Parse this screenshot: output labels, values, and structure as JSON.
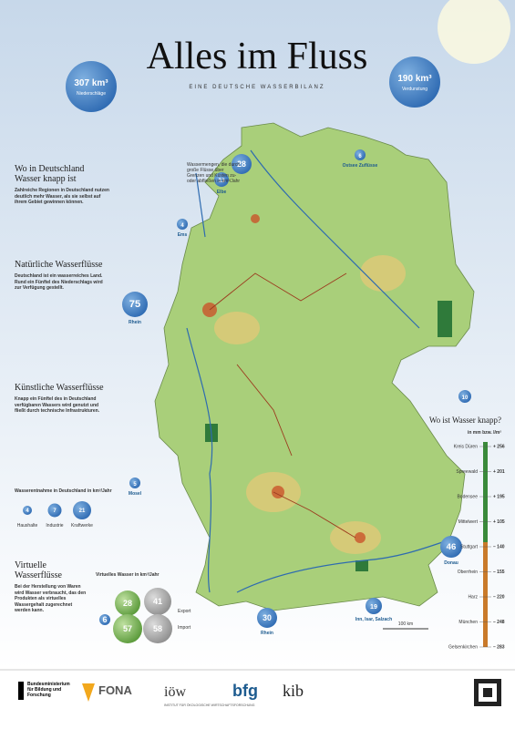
{
  "header": {
    "title": "Alles im Fluss",
    "subtitle": "EINE DEUTSCHE WASSERBILANZ"
  },
  "precipitation": {
    "value": "307 km³",
    "label": "Niederschläge"
  },
  "evaporation": {
    "value": "190 km³",
    "label": "Verdunstung"
  },
  "flows_intro": "Wassermengen, die durch große Flüsse über Grenzen und Küsten zu- oder abfließen in km³/Jahr",
  "flows": [
    {
      "value": "28",
      "label": ""
    },
    {
      "value": "13",
      "label": "Elbe"
    },
    {
      "value": "6",
      "label": "Ostsee Zuflüsse"
    },
    {
      "value": "4",
      "label": "Ems"
    },
    {
      "value": "75",
      "label": "Rhein"
    },
    {
      "value": "10",
      "label": ""
    },
    {
      "value": "5",
      "label": "Mosel"
    },
    {
      "value": "46",
      "label": "Donau"
    },
    {
      "value": "30",
      "label": "Rhein"
    },
    {
      "value": "19",
      "label": "Inn, Isar, Salzach"
    }
  ],
  "sections": [
    {
      "title": "Wo in Deutschland Wasser knapp ist",
      "text": "Zahlreiche Regionen in Deutschland nutzen deutlich mehr Wasser, als sie selbst auf ihrem Gebiet gewinnen können."
    },
    {
      "title": "Natürliche Wasserflüsse",
      "text": "Deutschland ist ein wasserreiches Land. Rund ein Fünftel des Niederschlags wird zur Verfügung gestellt."
    },
    {
      "title": "Künstliche Wasserflüsse",
      "text": "Knapp ein Fünftel des in Deutschland verfügbaren Wassers wird genutzt und fließt durch technische Infrastrukturen."
    },
    {
      "title": "Virtuelle Wasserflüsse",
      "text": "Bei der Herstellung von Waren wird Wasser verbraucht, das den Produkten als virtuelles Wassergehalt zugerechnet werden kann."
    }
  ],
  "withdrawal": {
    "title": "Wasserentnahme in Deutschland in km³/Jahr",
    "items": [
      {
        "value": "4",
        "label": "Haushalte"
      },
      {
        "value": "7",
        "label": "Industrie"
      },
      {
        "value": "21",
        "label": "Kraftwerke"
      }
    ]
  },
  "virtual": {
    "title": "Virtuelles Wasser in km³/Jahr",
    "values": [
      "28",
      "41",
      "6",
      "57",
      "58"
    ],
    "export": "Export",
    "import": "Import"
  },
  "scarcity": {
    "title": "Wo ist Wasser knapp?",
    "unit": "in mm bzw. l/m²",
    "items": [
      {
        "label": "Kreis Düren",
        "value": "+ 256"
      },
      {
        "label": "Spreewald",
        "value": "+ 201"
      },
      {
        "label": "Bodensee",
        "value": "+ 195"
      },
      {
        "label": "Mittelwert",
        "value": "+ 105"
      },
      {
        "label": "Stuttgart",
        "value": "– 140"
      },
      {
        "label": "Oberrhein",
        "value": "– 155"
      },
      {
        "label": "Harz",
        "value": "– 220"
      },
      {
        "label": "München",
        "value": "– 248"
      },
      {
        "label": "Gelsenkirchen",
        "value": "– 283"
      }
    ]
  },
  "scale_bar": "100 km",
  "footer": {
    "ministry": "Bundesministerium für Bildung und Forschung",
    "fona": "FONA",
    "ioew": "iöw",
    "ioew_sub": "INSTITUT FÜR ÖKOLOGISCHE WIRTSCHAFTSFORSCHUNG",
    "bfg": "bfg",
    "kib": "kib"
  }
}
